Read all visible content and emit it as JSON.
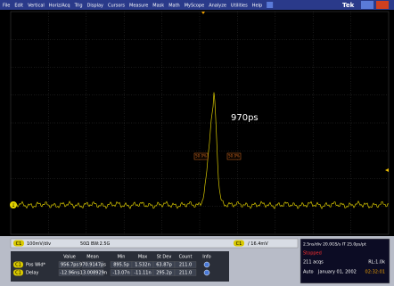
{
  "menu": [
    "File",
    "Edit",
    "Vertical",
    "Horiz/Acq",
    "Trig",
    "Display",
    "Cursors",
    "Measure",
    "Mask",
    "Math",
    "MyScope",
    "Analyze",
    "Utilities",
    "Help"
  ],
  "brand": "Tek",
  "annotation": "970ps",
  "cursor_labels": [
    "50.0%",
    "50.0%"
  ],
  "channel_marker": "1",
  "channel": {
    "badge": "C1",
    "scale": "100mV/div",
    "impedance": "50Ω",
    "bandwidth": "BW:2.5G"
  },
  "trigger": {
    "badge": "C1",
    "level": "/ 16.4mV"
  },
  "measurements": {
    "headers": [
      "Value",
      "Mean",
      "Min",
      "Max",
      "St Dev",
      "Count",
      "Info"
    ],
    "rows": [
      {
        "source": "C1",
        "name": "Pos Wid*",
        "cells": [
          "956.7ps",
          "970.9147ps",
          "895.5p",
          "1.532n",
          "63.87p",
          "211.0"
        ]
      },
      {
        "source": "C1",
        "name": "Delay",
        "cells": [
          "-12.96ns",
          "-13.008929n",
          "-13.07n",
          "-11.11n",
          "295.2p",
          "211.0"
        ]
      }
    ]
  },
  "status": {
    "timebase": "2.5ns/div  20.0GS/s  IT  25.0ps/pt",
    "state": "Stopped",
    "acqs": "211 acqs",
    "record": "RL:1.0k",
    "mode": "Auto",
    "date": "January 01, 2002",
    "time": "02:32:01"
  }
}
